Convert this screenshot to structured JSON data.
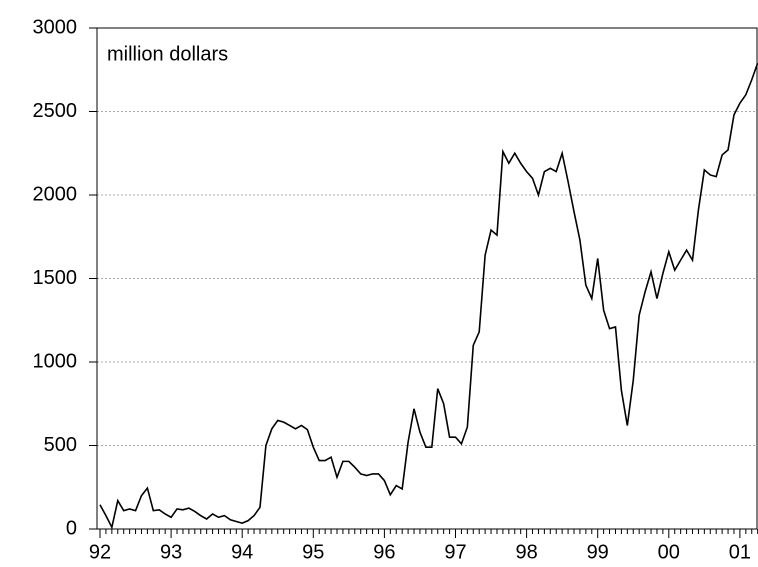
{
  "chart_data": {
    "type": "line",
    "annotation": "million dollars",
    "categories": [
      "92",
      null,
      null,
      null,
      null,
      null,
      null,
      null,
      null,
      null,
      null,
      null,
      "93",
      null,
      null,
      null,
      null,
      null,
      null,
      null,
      null,
      null,
      null,
      null,
      "94",
      null,
      null,
      null,
      null,
      null,
      null,
      null,
      null,
      null,
      null,
      null,
      "95",
      null,
      null,
      null,
      null,
      null,
      null,
      null,
      null,
      null,
      null,
      null,
      "96",
      null,
      null,
      null,
      null,
      null,
      null,
      null,
      null,
      null,
      null,
      null,
      "97",
      null,
      null,
      null,
      null,
      null,
      null,
      null,
      null,
      null,
      null,
      null,
      "98",
      null,
      null,
      null,
      null,
      null,
      null,
      null,
      null,
      null,
      null,
      null,
      "99",
      null,
      null,
      null,
      null,
      null,
      null,
      null,
      null,
      null,
      null,
      null,
      "00",
      null,
      null,
      null,
      null,
      null,
      null,
      null,
      null,
      null,
      null,
      null,
      "01",
      null,
      null,
      null
    ],
    "values": [
      145,
      80,
      10,
      170,
      110,
      120,
      110,
      200,
      245,
      110,
      115,
      90,
      70,
      120,
      115,
      125,
      105,
      80,
      60,
      90,
      70,
      80,
      55,
      45,
      35,
      50,
      80,
      130,
      500,
      600,
      650,
      640,
      620,
      600,
      620,
      595,
      490,
      410,
      410,
      430,
      310,
      405,
      405,
      370,
      330,
      320,
      330,
      330,
      290,
      205,
      260,
      240,
      520,
      720,
      580,
      490,
      490,
      840,
      750,
      550,
      550,
      510,
      610,
      1100,
      1180,
      1640,
      1790,
      1760,
      2260,
      2190,
      2250,
      2190,
      2140,
      2100,
      2000,
      2140,
      2160,
      2140,
      2250,
      2080,
      1900,
      1730,
      1460,
      1380,
      1620,
      1310,
      1200,
      1210,
      830,
      620,
      890,
      1280,
      1420,
      1540,
      1380,
      1530,
      1660,
      1550,
      1610,
      1670,
      1610,
      1910,
      2150,
      2120,
      2110,
      2240,
      2270,
      2480,
      2550,
      2600,
      2690,
      2790
    ],
    "color": "#000000",
    "ylim": [
      0,
      3000
    ],
    "yticks": [
      0,
      500,
      1000,
      1500,
      2000,
      2500,
      3000
    ],
    "grid": true
  }
}
